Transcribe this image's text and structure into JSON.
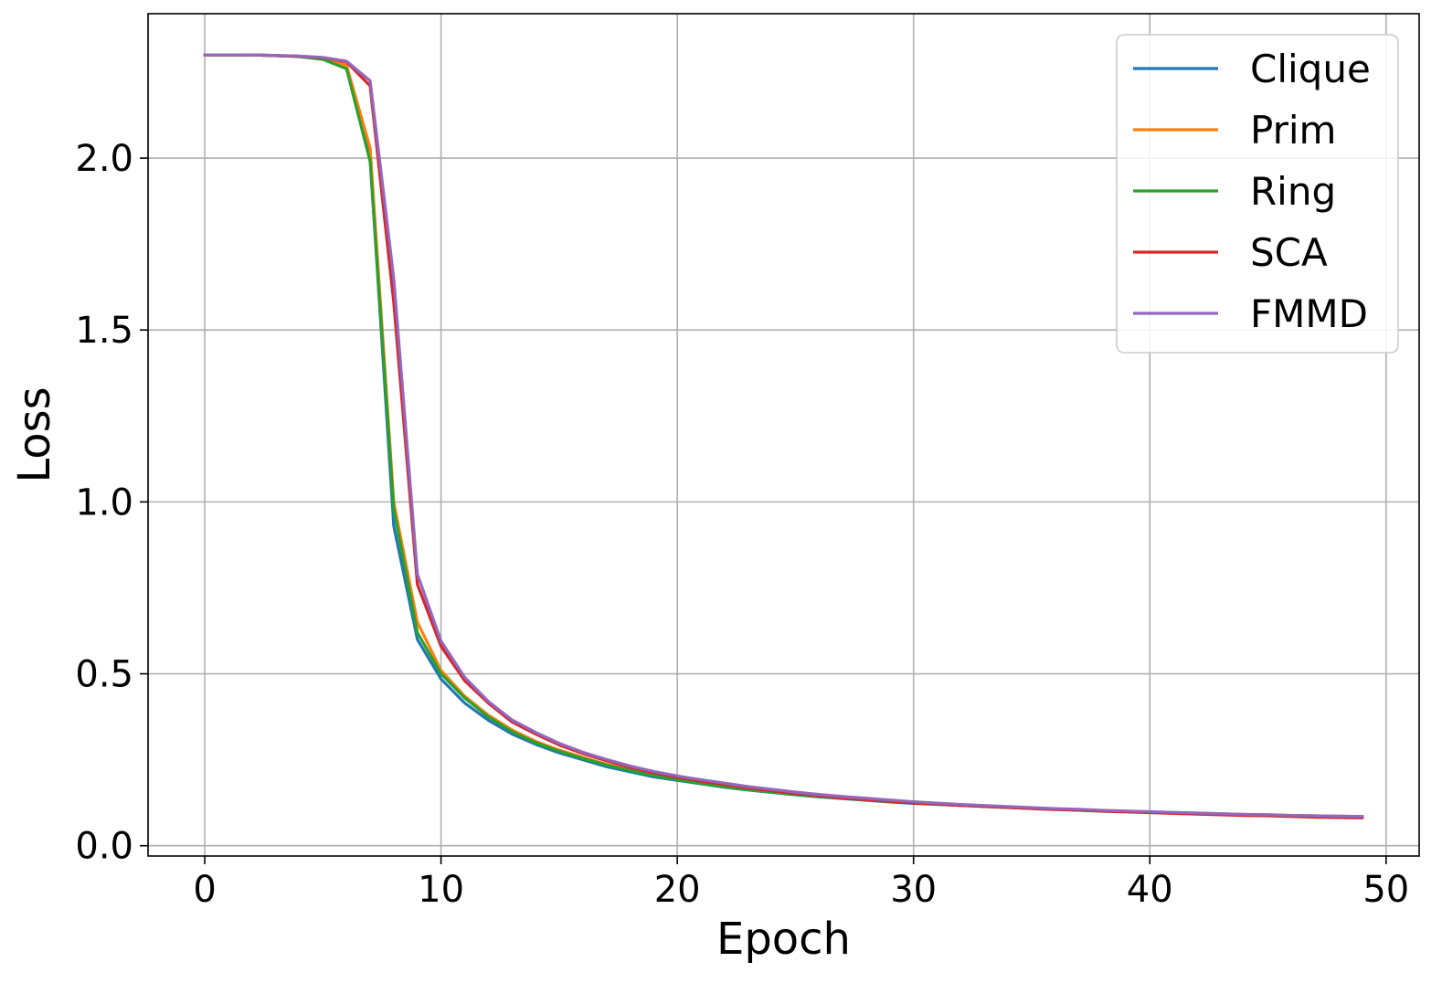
{
  "chart_data": {
    "type": "line",
    "title": "",
    "xlabel": "Epoch",
    "ylabel": "Loss",
    "xlim": [
      -2.4,
      51.4
    ],
    "ylim": [
      -0.03,
      2.42
    ],
    "xticks": [
      0,
      10,
      20,
      30,
      40,
      50
    ],
    "xtick_labels": [
      "0",
      "10",
      "20",
      "30",
      "40",
      "50"
    ],
    "yticks": [
      0.0,
      0.5,
      1.0,
      1.5,
      2.0
    ],
    "ytick_labels": [
      "0.0",
      "0.5",
      "1.0",
      "1.5",
      "2.0"
    ],
    "grid": true,
    "legend_position": "top-right",
    "x": [
      0,
      1,
      2,
      3,
      4,
      5,
      6,
      7,
      8,
      9,
      10,
      11,
      12,
      13,
      14,
      15,
      16,
      17,
      18,
      19,
      20,
      21,
      22,
      23,
      24,
      25,
      26,
      27,
      28,
      29,
      30,
      31,
      32,
      33,
      34,
      35,
      36,
      37,
      38,
      39,
      40,
      41,
      42,
      43,
      44,
      45,
      46,
      47,
      48,
      49
    ],
    "series": [
      {
        "name": "Clique",
        "color": "#1f77b4",
        "values": [
          2.3,
          2.3,
          2.3,
          2.298,
          2.296,
          2.29,
          2.27,
          2.0,
          0.93,
          0.6,
          0.485,
          0.415,
          0.365,
          0.325,
          0.295,
          0.27,
          0.25,
          0.23,
          0.215,
          0.2,
          0.19,
          0.18,
          0.17,
          0.162,
          0.155,
          0.148,
          0.142,
          0.137,
          0.132,
          0.127,
          0.123,
          0.12,
          0.117,
          0.114,
          0.111,
          0.108,
          0.106,
          0.103,
          0.101,
          0.099,
          0.097,
          0.095,
          0.094,
          0.092,
          0.09,
          0.089,
          0.087,
          0.086,
          0.085,
          0.084
        ]
      },
      {
        "name": "Prim",
        "color": "#ff7f0e",
        "values": [
          2.3,
          2.3,
          2.3,
          2.298,
          2.296,
          2.29,
          2.27,
          2.03,
          1.0,
          0.65,
          0.51,
          0.435,
          0.38,
          0.337,
          0.304,
          0.278,
          0.257,
          0.237,
          0.221,
          0.206,
          0.194,
          0.183,
          0.173,
          0.165,
          0.158,
          0.151,
          0.145,
          0.14,
          0.135,
          0.13,
          0.126,
          0.122,
          0.119,
          0.116,
          0.113,
          0.11,
          0.107,
          0.105,
          0.102,
          0.1,
          0.098,
          0.096,
          0.095,
          0.093,
          0.091,
          0.09,
          0.088,
          0.087,
          0.086,
          0.085
        ]
      },
      {
        "name": "Ring",
        "color": "#2ca02c",
        "values": [
          2.3,
          2.3,
          2.3,
          2.298,
          2.295,
          2.287,
          2.26,
          1.99,
          0.98,
          0.62,
          0.5,
          0.43,
          0.375,
          0.332,
          0.3,
          0.275,
          0.254,
          0.235,
          0.219,
          0.204,
          0.192,
          0.181,
          0.171,
          0.163,
          0.156,
          0.149,
          0.143,
          0.138,
          0.133,
          0.128,
          0.124,
          0.121,
          0.118,
          0.115,
          0.112,
          0.109,
          0.106,
          0.104,
          0.101,
          0.099,
          0.097,
          0.095,
          0.094,
          0.092,
          0.09,
          0.089,
          0.087,
          0.086,
          0.085,
          0.084
        ]
      },
      {
        "name": "SCA",
        "color": "#d62728",
        "values": [
          2.3,
          2.3,
          2.3,
          2.298,
          2.296,
          2.292,
          2.28,
          2.21,
          1.58,
          0.76,
          0.58,
          0.48,
          0.415,
          0.36,
          0.325,
          0.293,
          0.268,
          0.247,
          0.228,
          0.212,
          0.199,
          0.188,
          0.178,
          0.168,
          0.16,
          0.152,
          0.145,
          0.139,
          0.134,
          0.129,
          0.124,
          0.121,
          0.117,
          0.114,
          0.111,
          0.108,
          0.105,
          0.103,
          0.1,
          0.098,
          0.096,
          0.094,
          0.092,
          0.09,
          0.088,
          0.087,
          0.085,
          0.083,
          0.082,
          0.081
        ]
      },
      {
        "name": "FMMD",
        "color": "#9467bd",
        "values": [
          2.3,
          2.3,
          2.3,
          2.299,
          2.297,
          2.293,
          2.282,
          2.225,
          1.65,
          0.79,
          0.595,
          0.49,
          0.42,
          0.366,
          0.33,
          0.298,
          0.272,
          0.251,
          0.232,
          0.216,
          0.203,
          0.192,
          0.182,
          0.172,
          0.164,
          0.156,
          0.149,
          0.143,
          0.138,
          0.133,
          0.128,
          0.124,
          0.12,
          0.117,
          0.114,
          0.111,
          0.108,
          0.106,
          0.103,
          0.101,
          0.099,
          0.097,
          0.095,
          0.093,
          0.091,
          0.09,
          0.088,
          0.087,
          0.086,
          0.085
        ]
      }
    ]
  }
}
